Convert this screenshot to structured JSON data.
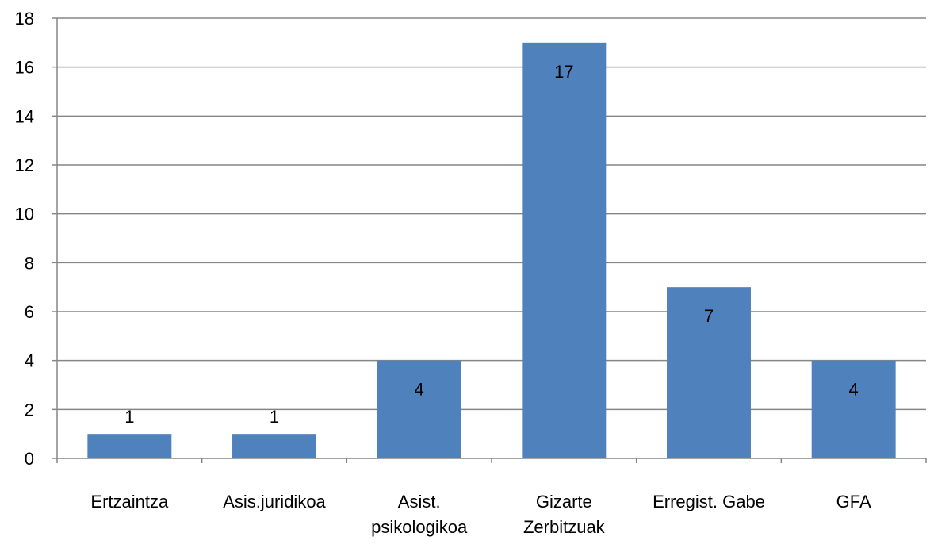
{
  "chart_data": {
    "type": "bar",
    "title": "",
    "xlabel": "",
    "ylabel": "",
    "categories": [
      [
        "Ertzaintza"
      ],
      [
        "Asis.juridikoa"
      ],
      [
        "Asist.",
        "psikologikoa"
      ],
      [
        "Gizarte",
        "Zerbitzuak"
      ],
      [
        "Erregist. Gabe"
      ],
      [
        "GFA"
      ]
    ],
    "values": [
      1,
      1,
      4,
      17,
      7,
      4
    ],
    "data_labels": [
      "1",
      "1",
      "4",
      "17",
      "7",
      "4"
    ],
    "ylim": [
      0,
      18
    ],
    "yticks": [
      0,
      2,
      4,
      6,
      8,
      10,
      12,
      14,
      16,
      18
    ],
    "grid": true,
    "legend": "none",
    "colors": {
      "bar": "#4f81bd",
      "grid": "#868686",
      "axis": "#868686",
      "text": "#000000"
    }
  }
}
